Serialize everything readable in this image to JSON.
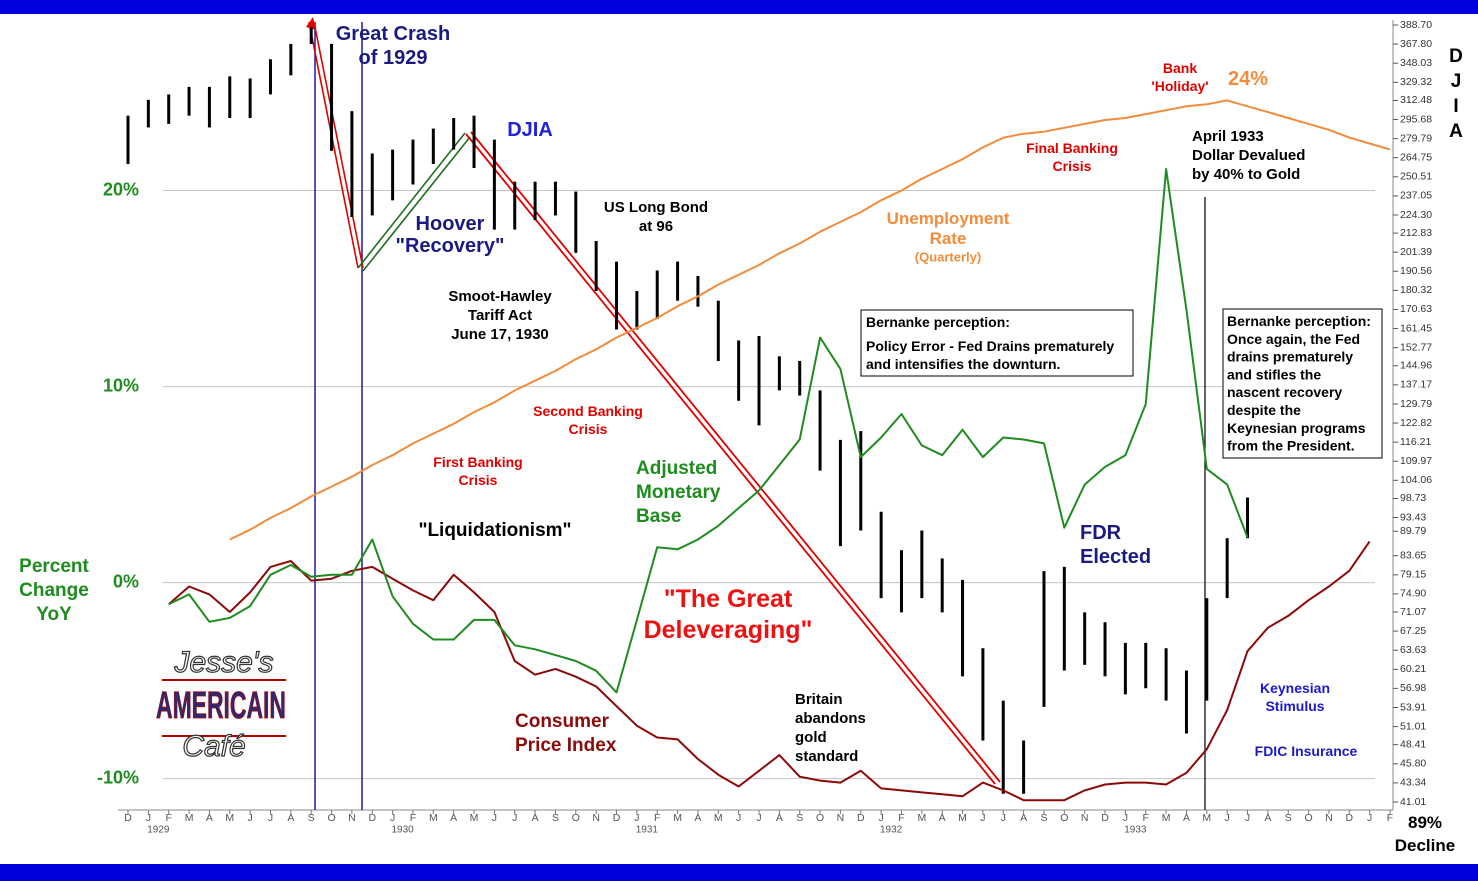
{
  "chart_data": {
    "type": "line",
    "categories": [
      "D",
      "J",
      "F",
      "M",
      "A",
      "M",
      "J",
      "J",
      "A",
      "S",
      "O",
      "N",
      "D",
      "J",
      "F",
      "M",
      "A",
      "M",
      "J",
      "J",
      "A",
      "S",
      "O",
      "N",
      "D",
      "J",
      "F",
      "M",
      "A",
      "M",
      "J",
      "J",
      "A",
      "S",
      "O",
      "N",
      "D",
      "J",
      "F",
      "M",
      "A",
      "M",
      "J",
      "J",
      "A",
      "S",
      "O",
      "N",
      "D",
      "J",
      "F",
      "M",
      "A",
      "M",
      "J",
      "J",
      "A",
      "S",
      "O",
      "N",
      "D",
      "J",
      "F"
    ],
    "year_labels": [
      "1929",
      "1930",
      "1931",
      "1932",
      "1933"
    ],
    "ylim": [
      -11.6,
      28.7
    ],
    "yticks": [
      {
        "value": -10,
        "label": "-10%"
      },
      {
        "value": 0,
        "label": "0%"
      },
      {
        "value": 10,
        "label": "10%"
      },
      {
        "value": 20,
        "label": "20%"
      }
    ],
    "ylabel": [
      "Percent",
      "Change",
      "YoY"
    ],
    "y2lim": [
      40.07,
      394.4
    ],
    "y2scale": "log",
    "y2label": "DJIA",
    "y2ticks": [
      {
        "value": 388.7,
        "label": "388.70"
      },
      {
        "value": 367.8,
        "label": "367.80"
      },
      348.03,
      329.32,
      312.48,
      295.68,
      279.79,
      264.75,
      250.51,
      237.05,
      {
        "value": 224.3,
        "label": "224.30"
      },
      212.83,
      201.39,
      190.56,
      180.32,
      170.63,
      161.45,
      152.77,
      144.96,
      137.17,
      129.79,
      122.82,
      116.21,
      109.97,
      104.06,
      98.73,
      93.43,
      89.79,
      83.65,
      79.15,
      {
        "value": 74.9,
        "label": "74.90"
      },
      71.07,
      67.25,
      63.63,
      60.21,
      56.98,
      53.91,
      51.01,
      48.41,
      {
        "value": 45.8,
        "label": "45.80"
      },
      43.34,
      41.01
    ],
    "grid": true,
    "series": [
      {
        "name": "DJIA",
        "type": "range",
        "axis": "y2",
        "color": "#000000",
        "high": [
          299,
          313,
          318,
          325,
          325,
          335,
          333,
          352,
          368,
          386,
          368,
          303,
          268,
          271,
          279,
          288,
          297,
          299,
          279,
          247,
          247,
          247,
          240,
          208,
          196,
          180,
          191,
          196,
          188,
          175,
          156,
          158,
          149,
          147,
          135,
          117,
          120,
          95,
          85,
          90,
          83,
          78,
          64,
          55,
          49,
          80,
          81,
          71,
          69,
          65,
          65,
          64,
          60,
          74,
          88,
          99,
          null,
          null,
          null,
          null,
          null,
          null,
          null
        ],
        "low": [
          260,
          289,
          292,
          299,
          289,
          297,
          297,
          318,
          336,
          368,
          270,
          223,
          224,
          234,
          245,
          260,
          271,
          257,
          215,
          215,
          221,
          224,
          201,
          180,
          161,
          161,
          166,
          175,
          172,
          147,
          131,
          122,
          135,
          133,
          107,
          86,
          90,
          74,
          71,
          74,
          71,
          59,
          49,
          42,
          42,
          54,
          60,
          61,
          59,
          56,
          57,
          55,
          50,
          55,
          74,
          88,
          null,
          null,
          null,
          null,
          null,
          null,
          null
        ]
      },
      {
        "name": [
          "Unemployment",
          "Rate"
        ],
        "note": "(Quarterly)",
        "type": "line",
        "color": "#f28c3c",
        "values": [
          null,
          null,
          null,
          null,
          null,
          2.2,
          2.7,
          3.3,
          3.8,
          4.4,
          4.9,
          5.4,
          6.0,
          6.5,
          7.1,
          7.6,
          8.1,
          8.7,
          9.2,
          9.8,
          10.3,
          10.8,
          11.4,
          11.9,
          12.5,
          13.0,
          13.5,
          14.1,
          14.6,
          15.2,
          15.7,
          16.2,
          16.8,
          17.3,
          17.9,
          18.4,
          18.9,
          19.5,
          20.0,
          20.6,
          21.1,
          21.6,
          22.2,
          22.7,
          22.9,
          23.0,
          23.2,
          23.4,
          23.6,
          23.7,
          23.9,
          24.1,
          24.3,
          24.4,
          24.6,
          24.3,
          24.0,
          23.7,
          23.4,
          23.1,
          22.7,
          22.4,
          22.1
        ]
      },
      {
        "name": [
          "Consumer",
          "Price Index"
        ],
        "type": "line",
        "color": "#8b0a0a",
        "values": [
          null,
          null,
          -1.1,
          -0.2,
          -0.6,
          -1.5,
          -0.5,
          0.8,
          1.1,
          0.1,
          0.2,
          0.6,
          0.8,
          0.2,
          -0.4,
          -0.9,
          0.4,
          -0.5,
          -1.5,
          -4.0,
          -4.7,
          -4.4,
          -4.8,
          -5.3,
          -6.3,
          -7.3,
          -7.9,
          -8.0,
          -9.0,
          -9.8,
          -10.4,
          -9.6,
          -8.8,
          -9.9,
          -10.1,
          -10.2,
          -9.6,
          -10.5,
          -10.6,
          -10.7,
          -10.8,
          -10.9,
          -10.2,
          -10.6,
          -11.1,
          -11.1,
          -11.1,
          -10.6,
          -10.3,
          -10.2,
          -10.2,
          -10.3,
          -9.7,
          -8.5,
          -6.5,
          -3.5,
          -2.3,
          -1.7,
          -0.9,
          -0.2,
          0.6,
          2.1,
          null
        ]
      },
      {
        "name": [
          "Adjusted",
          "Monetary",
          "Base"
        ],
        "type": "line",
        "color": "#1e8c1e",
        "values": [
          null,
          null,
          -1.1,
          -0.6,
          -2.0,
          -1.8,
          -1.2,
          0.4,
          0.9,
          0.3,
          0.4,
          0.4,
          2.2,
          -0.7,
          -2.1,
          -2.9,
          -2.9,
          -1.9,
          -1.9,
          -3.2,
          -3.4,
          -3.7,
          -4.0,
          -4.5,
          -5.6,
          -1.9,
          1.8,
          1.7,
          2.2,
          2.9,
          3.8,
          4.7,
          6.0,
          7.3,
          12.5,
          10.9,
          6.4,
          7.4,
          8.6,
          7.0,
          6.5,
          7.8,
          6.4,
          7.4,
          7.3,
          7.1,
          2.8,
          5.0,
          5.9,
          6.5,
          9.1,
          21.1,
          13.9,
          5.8,
          5.0,
          2.3,
          null,
          null,
          null,
          null,
          null,
          null,
          null
        ]
      }
    ],
    "annotations": [
      {
        "lines": [
          "Great Crash",
          "of 1929"
        ],
        "color": "#1a1a80"
      },
      {
        "lines": [
          "Smoot-Hawley",
          "Tariff Act",
          "June 17, 1930"
        ],
        "color": "#000000"
      },
      {
        "lines": [
          "US Long Bond",
          "at 96"
        ],
        "color": "#000000"
      },
      {
        "lines": [
          "Second Banking",
          "Crisis"
        ],
        "color": "#e00000"
      },
      {
        "lines": [
          "First Banking",
          "Crisis"
        ],
        "color": "#e00000"
      },
      {
        "lines": [
          "\"Liquidationism\""
        ],
        "color": "#000000"
      },
      {
        "lines": [
          "\"The Great",
          "Deleveraging\""
        ],
        "color": "#ee1111"
      },
      {
        "lines": [
          "Britain",
          "abandons",
          "gold",
          "standard"
        ],
        "color": "#000000"
      },
      {
        "lines": [
          "Bank",
          "'Holiday'"
        ],
        "color": "#e00000"
      },
      {
        "lines": [
          "24%"
        ],
        "color": "#f28c3c"
      },
      {
        "lines": [
          "Final Banking",
          "Crisis"
        ],
        "color": "#e00000"
      },
      {
        "lines": [
          "April 1933",
          "Dollar Devalued",
          "by 40% to Gold"
        ],
        "color": "#000000"
      },
      {
        "lines": [
          "FDR",
          "Elected"
        ],
        "color": "#1a1a80"
      },
      {
        "lines": [
          "Hoover",
          "\"Recovery\""
        ],
        "color": "#1a1a80"
      },
      {
        "lines": [
          "Keynesian",
          "Stimulus"
        ],
        "color": "#1a1acc"
      },
      {
        "lines": [
          "FDIC Insurance"
        ],
        "color": "#1a1acc"
      },
      {
        "lines": [
          "Bernanke perception:",
          "Policy Error - Fed Drains prematurely",
          "and intensifies the downturn."
        ],
        "color": "#000000"
      },
      {
        "lines": [
          "Bernanke perception:",
          "Once again, the Fed",
          "drains prematurely",
          "and stifles the",
          "nascent recovery",
          "despite the",
          "Keynesian programs",
          "from the President."
        ],
        "color": "#000000"
      },
      {
        "lines": [
          "89%",
          "Decline"
        ],
        "color": "#000000"
      }
    ]
  },
  "logo": [
    "Jesse's",
    "AMERICAIN",
    "Café"
  ]
}
